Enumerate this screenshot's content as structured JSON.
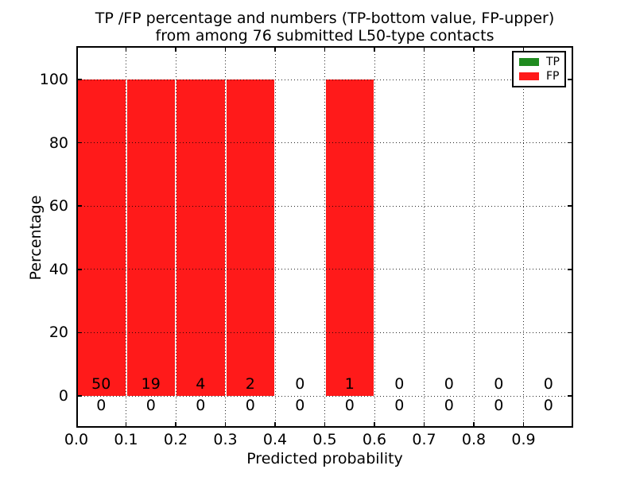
{
  "chart_data": {
    "type": "bar",
    "title": "TP /FP percentage and numbers (TP-bottom value, FP-upper)\nfrom among 76 submitted L50-type contacts",
    "title_lines": [
      "TP /FP percentage and numbers (TP-bottom value, FP-upper)",
      "from among 76 submitted L50-type contacts"
    ],
    "xlabel": "Predicted probability",
    "ylabel": "Percentage",
    "bin_edges": [
      0.0,
      0.1,
      0.2,
      0.3,
      0.4,
      0.5,
      0.6,
      0.7,
      0.8,
      0.9,
      1.0
    ],
    "series": [
      {
        "name": "TP",
        "color": "#1f8b1f",
        "count_position": "bottom",
        "percent": [
          0,
          0,
          0,
          0,
          0,
          0,
          0,
          0,
          0,
          0
        ],
        "counts": [
          0,
          0,
          0,
          0,
          0,
          0,
          0,
          0,
          0,
          0
        ]
      },
      {
        "name": "FP",
        "color": "#ff1a1a",
        "count_position": "upper",
        "percent": [
          100,
          100,
          100,
          100,
          0,
          100,
          0,
          0,
          0,
          0
        ],
        "counts": [
          50,
          19,
          4,
          2,
          0,
          1,
          0,
          0,
          0,
          0
        ]
      }
    ],
    "xticks": [
      "0.0",
      "0.1",
      "0.2",
      "0.3",
      "0.4",
      "0.5",
      "0.6",
      "0.7",
      "0.8",
      "0.9"
    ],
    "xtick_values": [
      0.0,
      0.1,
      0.2,
      0.3,
      0.4,
      0.5,
      0.6,
      0.7,
      0.8,
      0.9
    ],
    "yticks": [
      "0",
      "20",
      "40",
      "60",
      "80",
      "100"
    ],
    "ytick_values": [
      0,
      20,
      40,
      60,
      80,
      100
    ],
    "xlim": [
      0.0,
      1.0
    ],
    "ylim": [
      -10,
      110.5
    ],
    "grid": "dotted",
    "legend": {
      "position": "upper-right",
      "entries": [
        {
          "label": "TP"
        },
        {
          "label": "FP"
        }
      ]
    }
  }
}
